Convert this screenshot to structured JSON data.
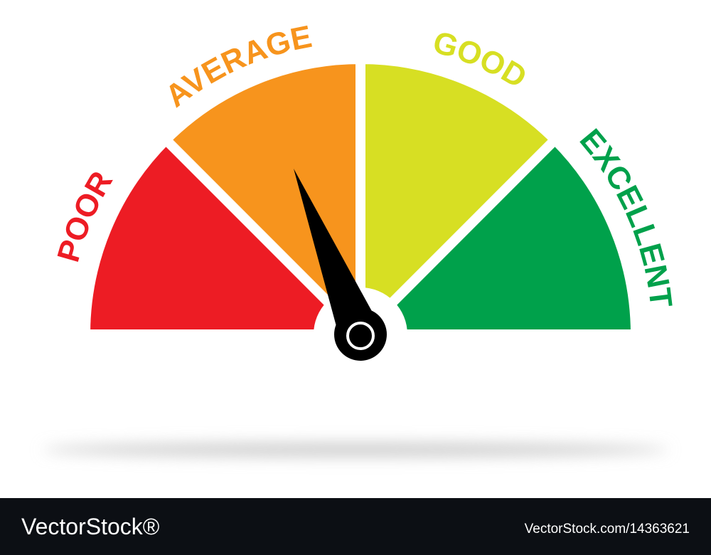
{
  "gauge": {
    "labels": [
      "POOR",
      "AVERAGE",
      "GOOD",
      "EXCELLENT"
    ]
  },
  "footer": {
    "brand": "VectorStock®",
    "id": "VectorStock.com/14363621"
  }
}
